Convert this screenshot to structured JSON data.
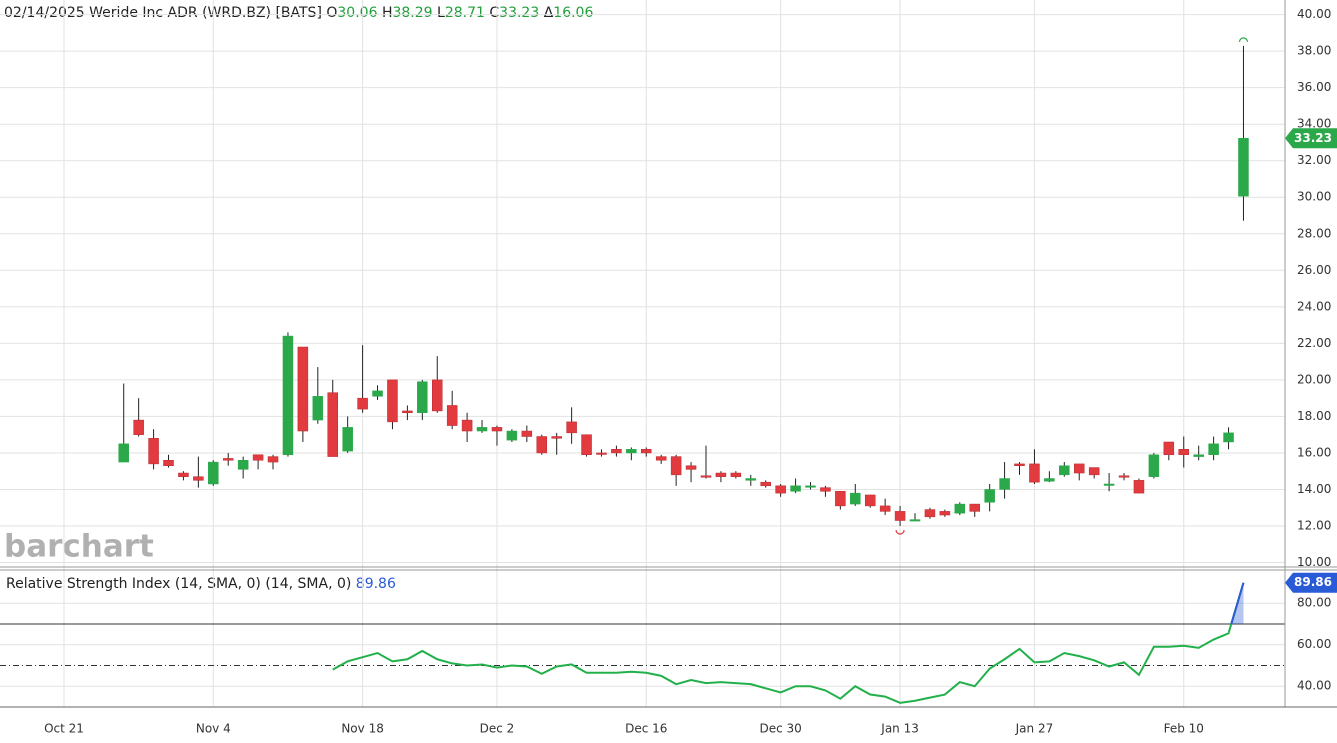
{
  "chart_data": [
    {
      "type": "candlestick",
      "header": {
        "date": "02/14/2025",
        "name": "Weride Inc ADR (WRD.BZ) [BATS]",
        "open_label": "O",
        "high_label": "H",
        "low_label": "L",
        "close_label": "C",
        "change_label": "Δ",
        "change": 16.06
      },
      "watermark": "barchart",
      "categories": [
        "Oct 21",
        null,
        null,
        null,
        null,
        null,
        null,
        null,
        null,
        null,
        "Nov 4",
        null,
        null,
        null,
        null,
        null,
        null,
        null,
        null,
        null,
        "Nov 18",
        null,
        null,
        null,
        null,
        null,
        null,
        null,
        null,
        "Dec 2",
        null,
        null,
        null,
        null,
        null,
        null,
        null,
        null,
        null,
        "Dec 16",
        null,
        null,
        null,
        null,
        null,
        null,
        null,
        null,
        "Dec 30",
        null,
        null,
        null,
        null,
        null,
        null,
        null,
        "Jan 13",
        null,
        null,
        null,
        null,
        null,
        null,
        null,
        null,
        "Jan 27",
        null,
        null,
        null,
        null,
        null,
        null,
        null,
        null,
        null,
        "Feb 10",
        null,
        null,
        null,
        null
      ],
      "open": [
        null,
        null,
        null,
        null,
        15.5,
        17.8,
        16.8,
        15.6,
        14.9,
        14.7,
        14.3,
        15.7,
        15.1,
        15.9,
        15.8,
        15.9,
        21.8,
        17.8,
        19.3,
        16.1,
        19.0,
        19.1,
        20.0,
        18.3,
        18.2,
        20.0,
        18.6,
        17.8,
        17.2,
        17.4,
        16.7,
        17.2,
        16.9,
        16.9,
        17.7,
        17.0,
        16.0,
        16.2,
        16.0,
        16.2,
        15.8,
        15.8,
        15.3,
        14.75,
        14.9,
        14.9,
        14.5,
        14.4,
        14.2,
        13.9,
        14.15,
        14.1,
        13.9,
        13.2,
        13.7,
        13.1,
        12.8,
        12.3,
        12.9,
        12.8,
        12.7,
        13.2,
        13.3,
        14.0,
        15.4,
        15.4,
        14.45,
        14.8,
        15.4,
        15.2,
        14.25,
        14.75,
        14.5,
        14.7,
        16.6,
        16.2,
        15.8,
        15.9,
        16.6,
        30.06
      ],
      "high": [
        null,
        null,
        null,
        null,
        19.8,
        19.0,
        17.3,
        15.9,
        15.0,
        15.8,
        15.6,
        16.0,
        15.8,
        15.9,
        15.9,
        22.6,
        21.8,
        20.7,
        20.0,
        18.0,
        21.9,
        19.7,
        20.0,
        18.6,
        20.0,
        21.3,
        19.4,
        18.2,
        17.8,
        17.5,
        17.3,
        17.5,
        17.0,
        17.1,
        18.5,
        17.0,
        16.2,
        16.4,
        16.3,
        16.3,
        15.9,
        15.9,
        15.5,
        16.4,
        15.0,
        15.0,
        14.8,
        14.5,
        14.3,
        14.6,
        14.4,
        14.2,
        13.9,
        14.3,
        13.7,
        13.5,
        13.1,
        12.7,
        13.0,
        12.9,
        13.3,
        13.2,
        14.3,
        15.5,
        15.5,
        16.2,
        15.0,
        15.5,
        15.4,
        15.2,
        14.9,
        14.9,
        14.6,
        16.0,
        16.6,
        16.9,
        16.4,
        16.9,
        17.4,
        38.29
      ],
      "low": [
        null,
        null,
        null,
        null,
        15.5,
        16.9,
        15.1,
        15.2,
        14.5,
        14.1,
        14.2,
        15.3,
        14.6,
        15.1,
        15.1,
        15.8,
        16.6,
        17.6,
        15.8,
        16.0,
        18.2,
        18.9,
        17.3,
        17.8,
        17.8,
        18.2,
        17.3,
        16.6,
        17.1,
        16.4,
        16.6,
        16.6,
        15.9,
        15.9,
        16.5,
        15.8,
        15.8,
        15.8,
        15.6,
        15.8,
        15.4,
        14.2,
        14.4,
        14.6,
        14.4,
        14.6,
        14.2,
        14.1,
        13.6,
        13.8,
        14.0,
        13.6,
        12.9,
        13.1,
        13.0,
        12.6,
        12.0,
        12.3,
        12.4,
        12.5,
        12.6,
        12.5,
        12.8,
        13.5,
        14.8,
        14.3,
        14.4,
        14.7,
        14.5,
        14.6,
        13.9,
        14.5,
        13.8,
        14.6,
        15.6,
        15.2,
        15.6,
        15.6,
        16.2,
        28.71
      ],
      "close": [
        null,
        null,
        null,
        null,
        16.5,
        17.0,
        15.4,
        15.3,
        14.7,
        14.5,
        15.5,
        15.6,
        15.6,
        15.6,
        15.5,
        22.4,
        17.2,
        19.1,
        15.8,
        17.4,
        18.4,
        19.4,
        17.7,
        18.2,
        19.9,
        18.3,
        17.5,
        17.2,
        17.4,
        17.2,
        17.2,
        16.9,
        16.0,
        16.8,
        17.1,
        15.9,
        15.95,
        16.0,
        16.2,
        16.0,
        15.6,
        14.8,
        15.1,
        14.7,
        14.7,
        14.7,
        14.6,
        14.2,
        13.8,
        14.2,
        14.2,
        13.9,
        13.1,
        13.8,
        13.1,
        12.8,
        12.3,
        12.35,
        12.5,
        12.6,
        13.2,
        12.8,
        14.0,
        14.6,
        15.3,
        14.4,
        14.6,
        15.3,
        14.9,
        14.8,
        14.3,
        14.7,
        13.8,
        15.9,
        15.9,
        15.9,
        15.9,
        16.5,
        17.1,
        33.23
      ],
      "up_color": "#2aa84a",
      "down_color": "#e23b3f",
      "ylim": [
        9.7,
        40.8
      ],
      "yticks": [
        {
          "value": 10,
          "label": "10.00"
        },
        {
          "value": 12,
          "label": "12.00"
        },
        {
          "value": 14,
          "label": "14.00"
        },
        {
          "value": 16,
          "label": "16.00"
        },
        {
          "value": 18,
          "label": "18.00"
        },
        {
          "value": 20,
          "label": "20.00"
        },
        {
          "value": 22,
          "label": "22.00"
        },
        {
          "value": 24,
          "label": "24.00"
        },
        {
          "value": 26,
          "label": "26.00"
        },
        {
          "value": 28,
          "label": "28.00"
        },
        {
          "value": 30,
          "label": "30.00"
        },
        {
          "value": 32,
          "label": "32.00"
        },
        {
          "value": 34,
          "label": "34.00"
        },
        {
          "value": 36,
          "label": "36.00"
        },
        {
          "value": 38,
          "label": "38.00"
        },
        {
          "value": 40,
          "label": "40.00"
        }
      ],
      "grid": true
    },
    {
      "type": "line",
      "title": "Relative Strength Index (14, SMA, 0)  (14, SMA, 0)",
      "series": [
        {
          "color": "#22b04a",
          "values": [
            null,
            null,
            null,
            null,
            null,
            null,
            null,
            null,
            null,
            null,
            null,
            null,
            null,
            null,
            null,
            null,
            null,
            null,
            48,
            52,
            54,
            56,
            52,
            53,
            57,
            53,
            51,
            50,
            50.5,
            49,
            50,
            49.5,
            46,
            49.5,
            50.5,
            46.5,
            46.5,
            46.5,
            47,
            46.5,
            45,
            41,
            43,
            41.5,
            42,
            41.5,
            41,
            39,
            37,
            40,
            40,
            38,
            34,
            40,
            36,
            35,
            32,
            33,
            34.5,
            36,
            42,
            40,
            48.5,
            53,
            58,
            51.5,
            52,
            56,
            54.5,
            52.5,
            49.5,
            51.5,
            45.5,
            59,
            59,
            59.5,
            58.5,
            62.5,
            65.5,
            89.86
          ]
        }
      ],
      "levels": [
        70,
        50
      ],
      "above_color": "#2a5bd7",
      "ylim": [
        30,
        96
      ],
      "yticks": [
        {
          "value": 40,
          "label": "40.00"
        },
        {
          "value": 60,
          "label": "60.00"
        },
        {
          "value": 80,
          "label": "80.00"
        }
      ],
      "grid": true
    }
  ]
}
